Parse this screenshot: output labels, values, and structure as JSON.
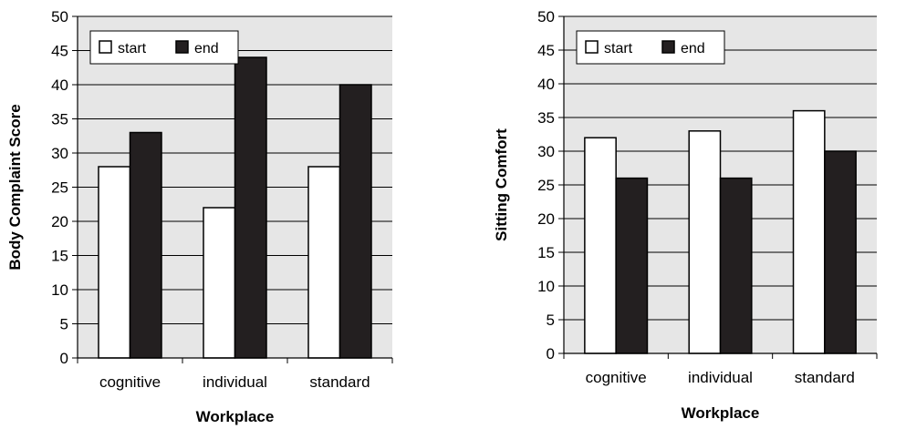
{
  "chart_data": [
    {
      "type": "bar",
      "title": "",
      "xlabel": "Workplace",
      "ylabel": "Body Complaint Score",
      "categories": [
        "cognitive",
        "individual",
        "standard"
      ],
      "series": [
        {
          "name": "start",
          "values": [
            28,
            22,
            28
          ],
          "color": "#ffffff"
        },
        {
          "name": "end",
          "values": [
            33,
            44,
            40
          ],
          "color": "#231f20"
        }
      ],
      "ylim": [
        0,
        50
      ],
      "yticks": [
        0,
        5,
        10,
        15,
        20,
        25,
        30,
        35,
        40,
        45,
        50
      ],
      "grid": true,
      "background": "#e6e6e6",
      "legend_position": "top-left"
    },
    {
      "type": "bar",
      "title": "",
      "xlabel": "Workplace",
      "ylabel": "Sitting Comfort",
      "categories": [
        "cognitive",
        "individual",
        "standard"
      ],
      "series": [
        {
          "name": "start",
          "values": [
            32,
            33,
            36
          ],
          "color": "#ffffff"
        },
        {
          "name": "end",
          "values": [
            26,
            26,
            30
          ],
          "color": "#231f20"
        }
      ],
      "ylim": [
        0,
        50
      ],
      "yticks": [
        0,
        5,
        10,
        15,
        20,
        25,
        30,
        35,
        40,
        45,
        50
      ],
      "grid": true,
      "background": "#e6e6e6",
      "legend_position": "top-left"
    }
  ]
}
